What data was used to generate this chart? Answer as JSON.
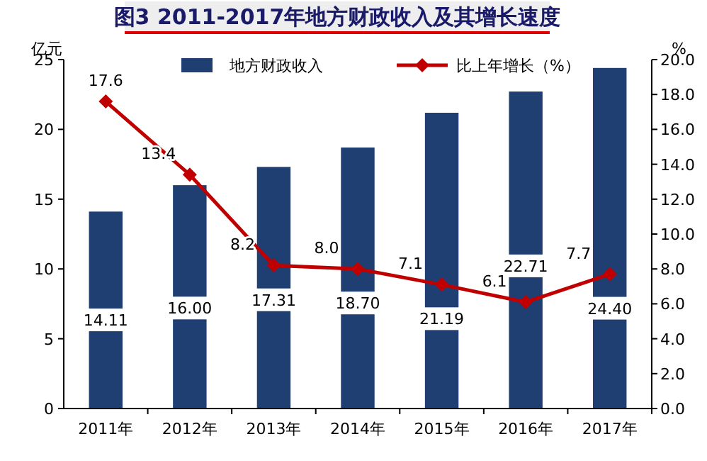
{
  "chart_data": {
    "type": "bar",
    "title": "图3  2011-2017年地方财政收入及其增长速度",
    "ylabel": "亿元",
    "y2label": "%",
    "categories": [
      "2011年",
      "2012年",
      "2013年",
      "2014年",
      "2015年",
      "2016年",
      "2017年"
    ],
    "series": [
      {
        "name": "地方财政收入",
        "color": "#1f3f73",
        "values": [
          14.11,
          16.0,
          17.31,
          18.7,
          21.19,
          22.71,
          24.4
        ],
        "value_labels": [
          "14.11",
          "16.00",
          "17.31",
          "18.70",
          "21.19",
          "22.71",
          "24.40"
        ]
      },
      {
        "name": "比上年增长（%）",
        "type": "line",
        "axis": "y2",
        "color": "#c00000",
        "marker": "diamond",
        "values": [
          17.6,
          13.4,
          8.2,
          8.0,
          7.1,
          6.1,
          7.7
        ],
        "value_labels": [
          "17.6",
          "13.4",
          "8.2",
          "8.0",
          "7.1",
          "6.1",
          "7.7"
        ]
      }
    ],
    "ylim": [
      0,
      25
    ],
    "yticks": [
      0,
      5,
      10,
      15,
      20,
      25
    ],
    "y2lim": [
      0,
      20
    ],
    "y2ticks": [
      {
        "value": 0,
        "label": "0.0"
      },
      {
        "value": 2,
        "label": "2.0"
      },
      {
        "value": 4,
        "label": "4.0"
      },
      {
        "value": 6,
        "label": "6.0"
      },
      {
        "value": 8,
        "label": "8.0"
      },
      {
        "value": 10,
        "label": "10.0"
      },
      {
        "value": 12,
        "label": "12.0"
      },
      {
        "value": 14,
        "label": "14.0"
      },
      {
        "value": 16,
        "label": "16.0"
      },
      {
        "value": 18,
        "label": "18.0"
      },
      {
        "value": 20,
        "label": "20.0"
      }
    ],
    "legend": "top",
    "grid": false
  }
}
